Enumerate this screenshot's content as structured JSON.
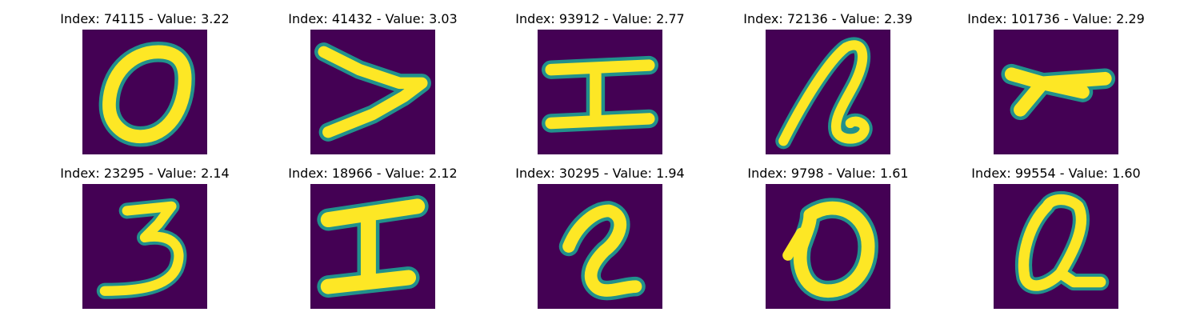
{
  "colors": {
    "background": "#440154",
    "stroke_edge": "#21918c",
    "stroke_mid": "#5ec962",
    "stroke_core": "#fde725"
  },
  "panels": [
    {
      "title": "Index: 74115 - Value: 3.22",
      "glyph": "0"
    },
    {
      "title": "Index: 41432 - Value: 3.03",
      "glyph": "7 (rotated)"
    },
    {
      "title": "Index: 93912 - Value: 2.77",
      "glyph": "I"
    },
    {
      "title": "Index: 72136 - Value: 2.39",
      "glyph": "2 (cursive)"
    },
    {
      "title": "Index: 101736 - Value: 2.29",
      "glyph": "Y (rotated)"
    },
    {
      "title": "Index: 23295 - Value: 2.14",
      "glyph": "3"
    },
    {
      "title": "Index: 18966 - Value: 2.12",
      "glyph": "I"
    },
    {
      "title": "Index: 30295 - Value: 1.94",
      "glyph": "2"
    },
    {
      "title": "Index: 9798 - Value: 1.61",
      "glyph": "0"
    },
    {
      "title": "Index: 99554 - Value: 1.60",
      "glyph": "Q"
    }
  ]
}
